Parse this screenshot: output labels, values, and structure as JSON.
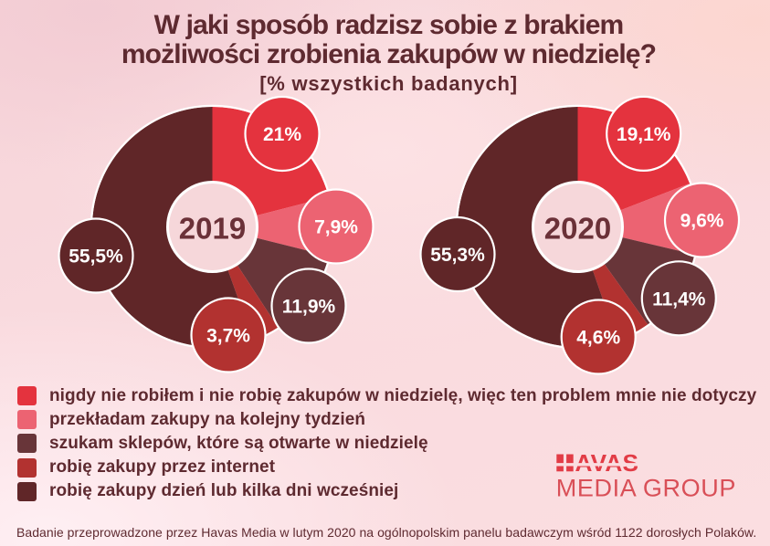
{
  "title": {
    "line1": "W jaki sposób radzisz sobie z brakiem",
    "line2": "możliwości zrobienia zakupów w niedzielę?",
    "subtitle": "[% wszystkich badanych]"
  },
  "chart_data": {
    "type": "pie",
    "title": "W jaki sposób radzisz sobie z brakiem możliwości zrobienia zakupów w niedzielę? [% wszystkich badanych]",
    "categories": [
      "nigdy nie robiłem i nie robię zakupów w niedzielę, więc ten problem mnie nie dotyczy",
      "przekładam zakupy na kolejny tydzień",
      "szukam sklepów, które są otwarte w niedzielę",
      "robię zakupy przez internet",
      "robię zakupy dzień lub kilka dni wcześniej"
    ],
    "colors": [
      "#e4333e",
      "#ec6372",
      "#683539",
      "#b23230",
      "#602628"
    ],
    "series": [
      {
        "name": "2019",
        "values": [
          21,
          7.9,
          11.9,
          3.7,
          55.5
        ],
        "labels": [
          "21%",
          "7,9%",
          "11,9%",
          "3,7%",
          "55,5%"
        ]
      },
      {
        "name": "2020",
        "values": [
          19.1,
          9.6,
          11.4,
          4.6,
          55.3
        ],
        "labels": [
          "19,1%",
          "9,6%",
          "11,4%",
          "4,6%",
          "55,3%"
        ]
      }
    ],
    "legend_position": "bottom-left",
    "center_fill": "#f6d7da",
    "ring_color": "#ffffff"
  },
  "logo": {
    "brand": "HAVAS",
    "brand_suffix": "AVAS",
    "sub": "MEDIA GROUP",
    "brand_color": "#e23c46",
    "sub_color": "#d94f57"
  },
  "footer": {
    "text": "Badanie przeprowadzone przez Havas Media w lutym 2020 na ogólnopolskim panelu badawczym wśród 1122 dorosłych Polaków."
  }
}
